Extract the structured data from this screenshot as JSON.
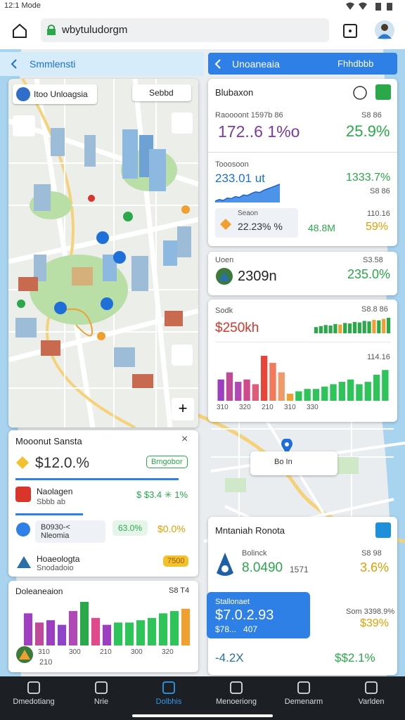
{
  "status_bar": {
    "time": "12:1 Mode"
  },
  "browser": {
    "url": "wbytuludorgm"
  },
  "left_header": {
    "title": "Smmlensti"
  },
  "right_header": {
    "title": "Unoaneaia",
    "action": "Fhhdbbb"
  },
  "map_card": {
    "title": "Itoo Unloagsia",
    "chip": "Sebbd"
  },
  "summary_card": {
    "title": "Mooonut Sansta",
    "rows": [
      {
        "value": "$12.0.%",
        "badge": "Bmgobor"
      },
      {
        "title": "Naolagen",
        "subtitle": "Sbbb ab",
        "value": "$ $3.4 ✳ 1%"
      },
      {
        "label": "B0930-< Nleomia",
        "badge": "63.0%",
        "value": "$0.0%"
      },
      {
        "title": "Hoaeologta",
        "subtitle": "Snodadoio",
        "badge": "7500"
      }
    ]
  },
  "bottom_chart": {
    "title": "Doleaneaion",
    "value": "S8 T4",
    "values": [
      70,
      50,
      55,
      45,
      75,
      95,
      60,
      45,
      50,
      50,
      55,
      60,
      70,
      75,
      80
    ],
    "colors": [
      "#a040c0",
      "#c04a9a",
      "#9b3fc0",
      "#8e44c8",
      "#b048b8",
      "#2aa84a",
      "#e04a8a",
      "#9b3fc0",
      "#2ec45a",
      "#2ec45a",
      "#2ec45a",
      "#2ec45a",
      "#2ec45a",
      "#2ec45a",
      "#f0a030"
    ],
    "x_labels": [
      "310",
      "300",
      "210",
      "300",
      "320"
    ],
    "footer": "210"
  },
  "right_cards": [
    {
      "title": "Blubaxon",
      "label1": "Raoooont  1597b 86",
      "value1": "172..6 1%o",
      "sub1": "S8 86",
      "change1": "25.9%",
      "label2": "Tooosoon",
      "value2": "233.01 ut",
      "change2": "1333.7%",
      "sub2": "S8 86",
      "sparkline": [
        40,
        45,
        42,
        50,
        48,
        55,
        52,
        60,
        58,
        65,
        70,
        68,
        75,
        80,
        85,
        90,
        95
      ],
      "box_label": "Seaon",
      "box_value": "22.23% %",
      "value3": "48.8M",
      "sub3": "110.16",
      "change3": "59%"
    },
    {
      "title": "Uoen",
      "value": "2309n",
      "sub": "S3.58",
      "change": "235.0%"
    },
    {
      "title": "Sodk",
      "value": "$250kh",
      "sub": "S8.8 86",
      "mini_values": [
        12,
        14,
        16,
        15,
        18,
        17,
        20,
        19,
        22,
        21,
        24,
        23,
        26,
        25,
        28,
        30
      ],
      "mini_colors": [
        "#2aa84a",
        "#2aa84a",
        "#2aa84a",
        "#2aa84a",
        "#2aa84a",
        "#f0a030",
        "#2aa84a",
        "#2aa84a",
        "#2aa84a",
        "#2aa84a",
        "#2aa84a",
        "#2aa84a",
        "#f0a030",
        "#2aa84a",
        "#f0a030",
        "#2aa84a"
      ],
      "sub2": "114.16",
      "values": [
        45,
        60,
        40,
        45,
        35,
        95,
        80,
        60,
        15,
        20,
        25,
        25,
        30,
        35,
        40,
        45,
        35,
        40,
        55,
        65
      ],
      "colors": [
        "#9b3fc0",
        "#c04a9a",
        "#b048b8",
        "#d04a8a",
        "#e05a7a",
        "#e8453a",
        "#f07a5a",
        "#f09a6a",
        "#f0a030",
        "#2ec45a",
        "#2ec45a",
        "#2ec45a",
        "#2ec45a",
        "#2ec45a",
        "#2ec45a",
        "#2ec45a",
        "#2ec45a",
        "#2ec45a",
        "#2ec45a",
        "#2ec45a"
      ],
      "x_labels": [
        "310",
        "320",
        "210",
        "310",
        "330"
      ]
    },
    {
      "title": "Mntaniah Ronota",
      "label": "Bolinck",
      "value": "8.0490",
      "value_sub": "1571",
      "sub": "S8 98",
      "change": "3.6%",
      "highlight_label": "Stallonaet",
      "highlight_value": "$7.0.2.93",
      "highlight_sub": "$78...    407",
      "side_label": "Som 3398.9%",
      "side_value": "$39%",
      "footer_left": "-4.2X",
      "footer_right": "$$2.1%"
    }
  ],
  "map_pin": {
    "label": "Bo In"
  },
  "nav": [
    {
      "label": "Dmedotiang"
    },
    {
      "label": "Nrie"
    },
    {
      "label": "Dolbhis"
    },
    {
      "label": "Menoeriong"
    },
    {
      "label": "Demenarm"
    },
    {
      "label": "Varlden"
    }
  ]
}
